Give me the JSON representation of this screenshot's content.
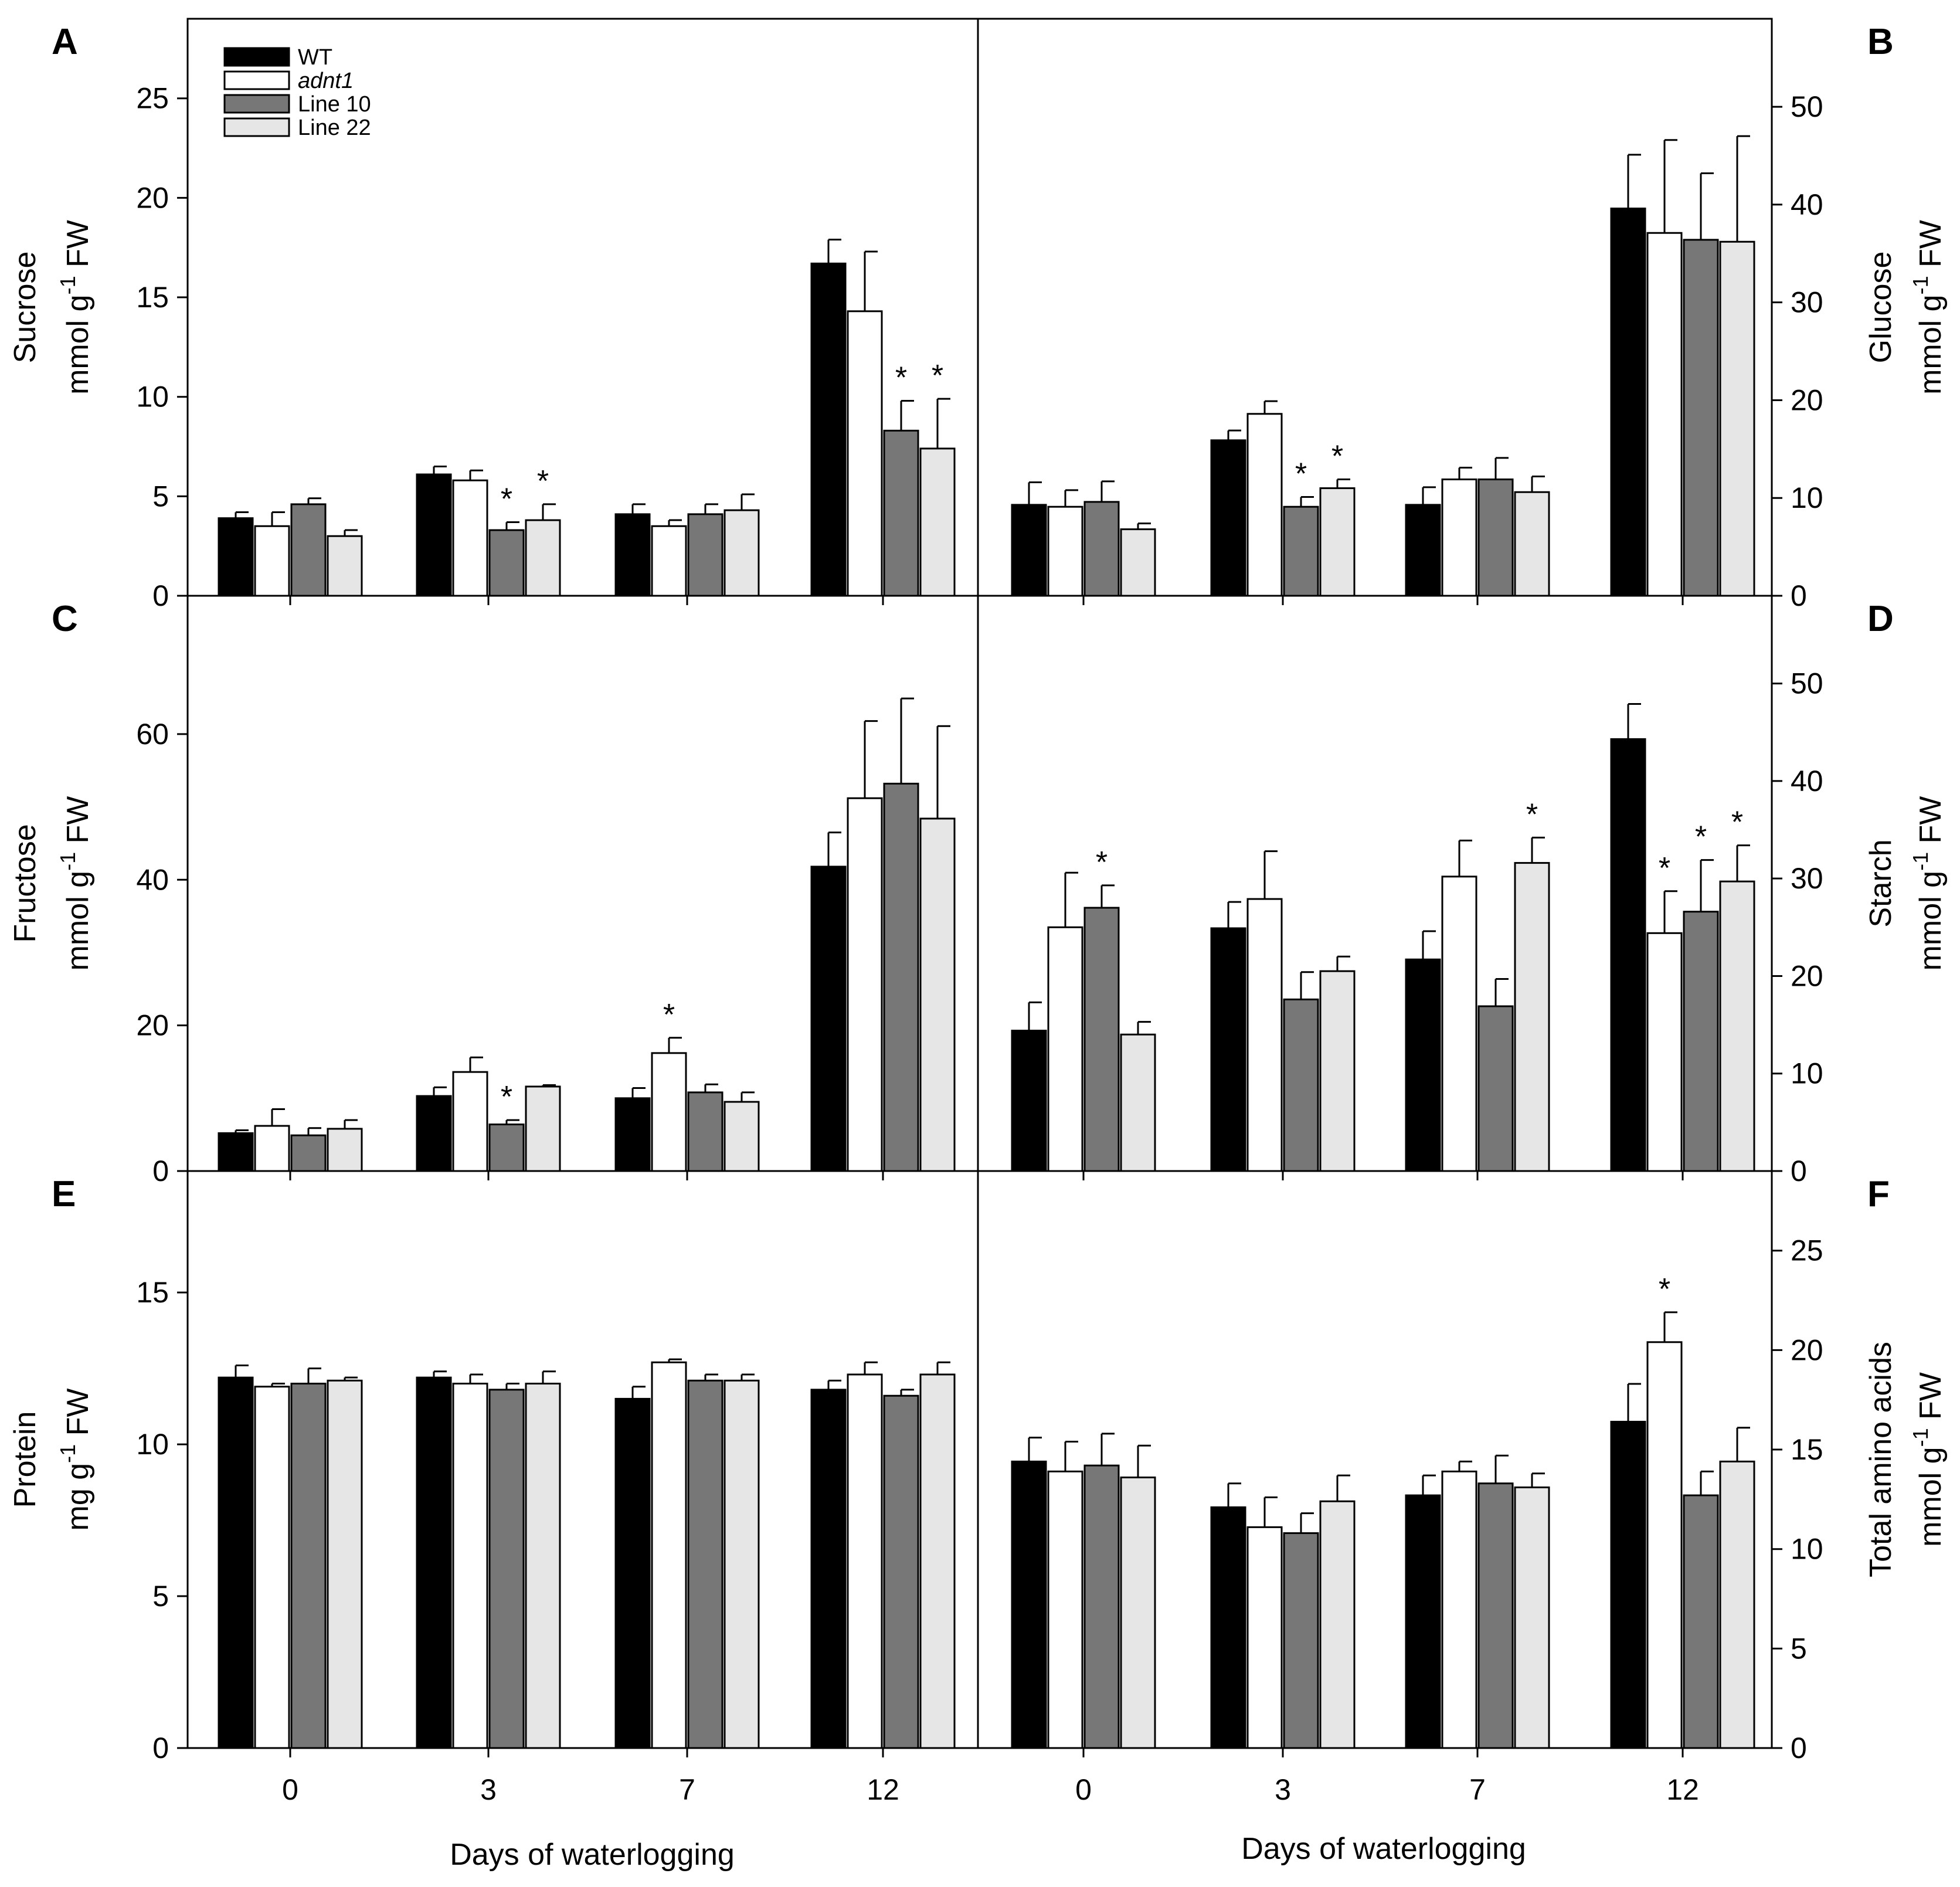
{
  "legend": [
    {
      "label": "WT",
      "color": "#000000",
      "italic": false
    },
    {
      "label": "adnt1",
      "color": "#ffffff",
      "italic": true
    },
    {
      "label": "Line 10",
      "color": "#777777",
      "italic": false
    },
    {
      "label": "Line 22",
      "color": "#e6e6e6",
      "italic": false
    }
  ],
  "x_axis_title": "Days of waterlogging",
  "chart_data": [
    {
      "panel": "A",
      "type": "bar",
      "side": "left",
      "categories": [
        "0",
        "3",
        "7",
        "12"
      ],
      "ylabel_line1": "Sucrose",
      "ylabel_line2": "mmol g",
      "ylabel_sup": "-1",
      "ylabel_tail": " FW",
      "ylim": [
        0,
        29
      ],
      "yticks": [
        0,
        5,
        10,
        15,
        20,
        25
      ],
      "series": [
        {
          "name": "WT",
          "values": [
            3.9,
            6.1,
            4.1,
            16.7
          ],
          "errors": [
            0.3,
            0.4,
            0.5,
            1.2
          ],
          "sig": [
            false,
            false,
            false,
            false
          ]
        },
        {
          "name": "adnt1",
          "values": [
            3.5,
            5.8,
            3.5,
            14.3
          ],
          "errors": [
            0.7,
            0.5,
            0.3,
            3.0
          ],
          "sig": [
            false,
            false,
            false,
            false
          ]
        },
        {
          "name": "Line 10",
          "values": [
            4.6,
            3.3,
            4.1,
            8.3
          ],
          "errors": [
            0.3,
            0.4,
            0.5,
            1.5
          ],
          "sig": [
            false,
            true,
            false,
            true
          ]
        },
        {
          "name": "Line 22",
          "values": [
            3.0,
            3.8,
            4.3,
            7.4
          ],
          "errors": [
            0.3,
            0.8,
            0.8,
            2.5
          ],
          "sig": [
            false,
            true,
            false,
            true
          ]
        }
      ]
    },
    {
      "panel": "B",
      "type": "bar",
      "side": "right",
      "categories": [
        "0",
        "3",
        "7",
        "12"
      ],
      "ylabel_line1": "Glucose",
      "ylabel_line2": "mmol g",
      "ylabel_sup": "-1",
      "ylabel_tail": " FW",
      "ylim": [
        0,
        59
      ],
      "yticks": [
        0,
        10,
        20,
        30,
        40,
        50
      ],
      "series": [
        {
          "name": "WT",
          "values": [
            9.3,
            15.9,
            9.3,
            39.6
          ],
          "errors": [
            2.3,
            1.0,
            1.8,
            5.5
          ],
          "sig": [
            false,
            false,
            false,
            false
          ]
        },
        {
          "name": "adnt1",
          "values": [
            9.1,
            18.6,
            11.9,
            37.1
          ],
          "errors": [
            1.7,
            1.3,
            1.2,
            9.5
          ],
          "sig": [
            false,
            false,
            false,
            false
          ]
        },
        {
          "name": "Line 10",
          "values": [
            9.6,
            9.1,
            11.9,
            36.4
          ],
          "errors": [
            2.1,
            1.0,
            2.2,
            6.8
          ],
          "sig": [
            false,
            true,
            false,
            false
          ]
        },
        {
          "name": "Line 22",
          "values": [
            6.8,
            11.0,
            10.6,
            36.2
          ],
          "errors": [
            0.6,
            0.9,
            1.6,
            10.8
          ],
          "sig": [
            false,
            true,
            false,
            false
          ]
        }
      ]
    },
    {
      "panel": "C",
      "type": "bar",
      "side": "left",
      "categories": [
        "0",
        "3",
        "7",
        "12"
      ],
      "ylabel_line1": "Fructose",
      "ylabel_line2": "mmol g",
      "ylabel_sup": "-1",
      "ylabel_tail": " FW",
      "ylim": [
        0,
        79
      ],
      "yticks": [
        0,
        20,
        40,
        60
      ],
      "series": [
        {
          "name": "WT",
          "values": [
            5.2,
            10.3,
            10.0,
            41.8
          ],
          "errors": [
            0.4,
            1.2,
            1.4,
            4.7
          ],
          "sig": [
            false,
            false,
            false,
            false
          ]
        },
        {
          "name": "adnt1",
          "values": [
            6.2,
            13.6,
            16.2,
            51.2
          ],
          "errors": [
            2.3,
            2.0,
            2.1,
            10.6
          ],
          "sig": [
            false,
            false,
            true,
            false
          ]
        },
        {
          "name": "Line 10",
          "values": [
            4.9,
            6.4,
            10.8,
            53.2
          ],
          "errors": [
            1.0,
            0.6,
            1.1,
            11.7
          ],
          "sig": [
            false,
            true,
            false,
            false
          ]
        },
        {
          "name": "Line 22",
          "values": [
            5.8,
            11.6,
            9.5,
            48.4
          ],
          "errors": [
            1.2,
            0.2,
            1.3,
            12.7
          ],
          "sig": [
            false,
            false,
            false,
            false
          ]
        }
      ]
    },
    {
      "panel": "D",
      "type": "bar",
      "side": "right",
      "categories": [
        "0",
        "3",
        "7",
        "12"
      ],
      "ylabel_line1": "Starch",
      "ylabel_line2": "mmol g",
      "ylabel_sup": "-1",
      "ylabel_tail": " FW",
      "ylim": [
        0,
        59
      ],
      "yticks": [
        0,
        10,
        20,
        30,
        40,
        50
      ],
      "series": [
        {
          "name": "WT",
          "values": [
            14.4,
            24.9,
            21.7,
            44.3
          ],
          "errors": [
            2.9,
            2.7,
            2.9,
            3.6
          ],
          "sig": [
            false,
            false,
            false,
            false
          ]
        },
        {
          "name": "adnt1",
          "values": [
            25.0,
            27.9,
            30.2,
            24.4
          ],
          "errors": [
            5.6,
            4.9,
            3.7,
            4.3
          ],
          "sig": [
            false,
            false,
            false,
            true
          ]
        },
        {
          "name": "Line 10",
          "values": [
            27.0,
            17.6,
            16.9,
            26.6
          ],
          "errors": [
            2.3,
            2.8,
            2.8,
            5.3
          ],
          "sig": [
            true,
            false,
            false,
            true
          ]
        },
        {
          "name": "Line 22",
          "values": [
            14.0,
            20.5,
            31.6,
            29.7
          ],
          "errors": [
            1.3,
            1.5,
            2.6,
            3.7
          ],
          "sig": [
            false,
            false,
            true,
            true
          ]
        }
      ]
    },
    {
      "panel": "E",
      "type": "bar",
      "side": "left",
      "categories": [
        "0",
        "3",
        "7",
        "12"
      ],
      "ylabel_line1": "Protein",
      "ylabel_line2": "mg g",
      "ylabel_sup": "-1",
      "ylabel_tail": " FW",
      "ylim": [
        0,
        19
      ],
      "yticks": [
        0,
        5,
        10,
        15
      ],
      "series": [
        {
          "name": "WT",
          "values": [
            12.2,
            12.2,
            11.5,
            11.8
          ],
          "errors": [
            0.4,
            0.2,
            0.4,
            0.3
          ],
          "sig": [
            false,
            false,
            false,
            false
          ]
        },
        {
          "name": "adnt1",
          "values": [
            11.9,
            12.0,
            12.7,
            12.3
          ],
          "errors": [
            0.1,
            0.3,
            0.1,
            0.4
          ],
          "sig": [
            false,
            false,
            false,
            false
          ]
        },
        {
          "name": "Line 10",
          "values": [
            12.0,
            11.8,
            12.1,
            11.6
          ],
          "errors": [
            0.5,
            0.2,
            0.2,
            0.2
          ],
          "sig": [
            false,
            false,
            false,
            false
          ]
        },
        {
          "name": "Line 22",
          "values": [
            12.1,
            12.0,
            12.1,
            12.3
          ],
          "errors": [
            0.1,
            0.4,
            0.2,
            0.4
          ],
          "sig": [
            false,
            false,
            false,
            false
          ]
        }
      ]
    },
    {
      "panel": "F",
      "type": "bar",
      "side": "right",
      "categories": [
        "0",
        "3",
        "7",
        "12"
      ],
      "ylabel_line1": "Total amino acids",
      "ylabel_line2": "mmol g",
      "ylabel_sup": "-1",
      "ylabel_tail": " FW",
      "ylim": [
        0,
        29
      ],
      "yticks": [
        0,
        5,
        10,
        15,
        20,
        25
      ],
      "series": [
        {
          "name": "WT",
          "values": [
            14.4,
            12.1,
            12.7,
            16.4
          ],
          "errors": [
            1.2,
            1.2,
            1.0,
            1.9
          ],
          "sig": [
            false,
            false,
            false,
            false
          ]
        },
        {
          "name": "adnt1",
          "values": [
            13.9,
            11.1,
            13.9,
            20.4
          ],
          "errors": [
            1.5,
            1.5,
            0.5,
            1.5
          ],
          "sig": [
            false,
            false,
            false,
            true
          ]
        },
        {
          "name": "Line 10",
          "values": [
            14.2,
            10.8,
            13.3,
            12.7
          ],
          "errors": [
            1.6,
            1.0,
            1.4,
            1.2
          ],
          "sig": [
            false,
            false,
            false,
            false
          ]
        },
        {
          "name": "Line 22",
          "values": [
            13.6,
            12.4,
            13.1,
            14.4
          ],
          "errors": [
            1.6,
            1.3,
            0.7,
            1.7
          ],
          "sig": [
            false,
            false,
            false,
            false
          ]
        }
      ]
    }
  ]
}
